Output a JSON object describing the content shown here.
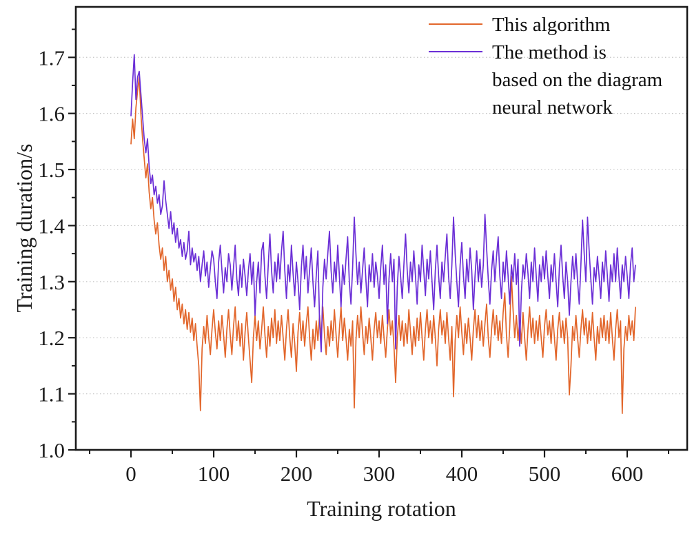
{
  "chart_data": {
    "type": "line",
    "title": "",
    "xlabel": "Training rotation",
    "ylabel": "Training duration/s",
    "xlim": [
      -66.7,
      672.5
    ],
    "ylim": [
      1.0,
      1.79
    ],
    "x_ticks_major": [
      0,
      100,
      200,
      300,
      400,
      500,
      600
    ],
    "x_ticks_minor": [
      -50,
      50,
      150,
      250,
      350,
      450,
      550,
      650
    ],
    "y_ticks_major": [
      1.0,
      1.1,
      1.2,
      1.3,
      1.4,
      1.5,
      1.6,
      1.7
    ],
    "y_tick_labels": [
      "1.0",
      "1.1",
      "1.2",
      "1.3",
      "1.4",
      "1.5",
      "1.6",
      "1.7"
    ],
    "y_ticks_minor": [
      1.05,
      1.15,
      1.25,
      1.35,
      1.45,
      1.55,
      1.65,
      1.75
    ],
    "grid": "horizontal-dotted",
    "grid_color": "#c4c4c4",
    "axis_color": "#1a1a1a",
    "legend": {
      "position": "top-right",
      "entries": [
        {
          "label": "This algorithm",
          "label_lines": [
            "This algorithm"
          ],
          "color": "#e2662b"
        },
        {
          "label": "The method is based on the diagram neural network",
          "label_lines": [
            "The method is",
            "based on the diagram",
            "neural network"
          ],
          "color": "#6b2fd6"
        }
      ]
    },
    "x_start": 0,
    "x_step": 2,
    "series": [
      {
        "name": "This algorithm",
        "color": "#e2662b",
        "values": [
          1.545,
          1.59,
          1.555,
          1.61,
          1.64,
          1.665,
          1.6,
          1.555,
          1.52,
          1.485,
          1.51,
          1.46,
          1.43,
          1.45,
          1.41,
          1.385,
          1.405,
          1.365,
          1.34,
          1.36,
          1.32,
          1.345,
          1.3,
          1.32,
          1.285,
          1.305,
          1.265,
          1.29,
          1.25,
          1.27,
          1.235,
          1.26,
          1.225,
          1.25,
          1.215,
          1.245,
          1.21,
          1.235,
          1.195,
          1.225,
          1.185,
          1.15,
          1.07,
          1.18,
          1.22,
          1.19,
          1.24,
          1.2,
          1.17,
          1.215,
          1.25,
          1.21,
          1.18,
          1.23,
          1.195,
          1.24,
          1.205,
          1.165,
          1.215,
          1.25,
          1.205,
          1.17,
          1.22,
          1.255,
          1.195,
          1.23,
          1.185,
          1.225,
          1.16,
          1.21,
          1.245,
          1.2,
          1.16,
          1.12,
          1.2,
          1.24,
          1.195,
          1.23,
          1.18,
          1.215,
          1.255,
          1.205,
          1.165,
          1.22,
          1.185,
          1.235,
          1.2,
          1.25,
          1.19,
          1.23,
          1.195,
          1.24,
          1.2,
          1.16,
          1.215,
          1.25,
          1.2,
          1.165,
          1.225,
          1.19,
          1.14,
          1.21,
          1.245,
          1.195,
          1.23,
          1.185,
          1.225,
          1.255,
          1.2,
          1.16,
          1.215,
          1.18,
          1.23,
          1.195,
          1.24,
          1.2,
          1.255,
          1.205,
          1.17,
          1.22,
          1.185,
          1.23,
          1.195,
          1.25,
          1.205,
          1.165,
          1.215,
          1.255,
          1.195,
          1.235,
          1.2,
          1.16,
          1.215,
          1.185,
          1.23,
          1.075,
          1.195,
          1.24,
          1.2,
          1.255,
          1.21,
          1.17,
          1.22,
          1.19,
          1.235,
          1.2,
          1.16,
          1.215,
          1.245,
          1.2,
          1.23,
          1.19,
          1.24,
          1.2,
          1.165,
          1.215,
          1.25,
          1.205,
          1.23,
          1.185,
          1.12,
          1.2,
          1.24,
          1.195,
          1.23,
          1.185,
          1.225,
          1.19,
          1.25,
          1.21,
          1.17,
          1.22,
          1.185,
          1.235,
          1.195,
          1.245,
          1.2,
          1.16,
          1.215,
          1.25,
          1.2,
          1.23,
          1.19,
          1.24,
          1.2,
          1.15,
          1.215,
          1.25,
          1.205,
          1.23,
          1.19,
          1.245,
          1.2,
          1.16,
          1.22,
          1.095,
          1.195,
          1.24,
          1.2,
          1.255,
          1.21,
          1.17,
          1.225,
          1.19,
          1.235,
          1.2,
          1.16,
          1.215,
          1.25,
          1.2,
          1.24,
          1.195,
          1.23,
          1.185,
          1.225,
          1.26,
          1.2,
          1.165,
          1.215,
          1.25,
          1.205,
          1.24,
          1.195,
          1.23,
          1.19,
          1.245,
          1.28,
          1.205,
          1.165,
          1.22,
          1.31,
          1.25,
          1.2,
          1.24,
          1.195,
          1.23,
          1.19,
          1.245,
          1.2,
          1.16,
          1.215,
          1.255,
          1.2,
          1.235,
          1.19,
          1.23,
          1.195,
          1.24,
          1.2,
          1.165,
          1.22,
          1.25,
          1.205,
          1.23,
          1.19,
          1.24,
          1.2,
          1.16,
          1.215,
          1.245,
          1.2,
          1.23,
          1.19,
          1.235,
          1.2,
          1.098,
          1.15,
          1.22,
          1.195,
          1.24,
          1.2,
          1.165,
          1.215,
          1.25,
          1.205,
          1.235,
          1.19,
          1.23,
          1.195,
          1.245,
          1.2,
          1.16,
          1.22,
          1.19,
          1.235,
          1.2,
          1.24,
          1.195,
          1.23,
          1.19,
          1.245,
          1.2,
          1.16,
          1.215,
          1.25,
          1.2,
          1.23,
          1.065,
          1.18,
          1.22,
          1.195,
          1.24,
          1.205,
          1.23,
          1.195,
          1.255
        ]
      },
      {
        "name": "The method is based on the diagram neural network",
        "color": "#6b2fd6",
        "values": [
          1.595,
          1.655,
          1.705,
          1.625,
          1.665,
          1.675,
          1.635,
          1.595,
          1.555,
          1.53,
          1.555,
          1.505,
          1.475,
          1.49,
          1.455,
          1.47,
          1.44,
          1.455,
          1.42,
          1.435,
          1.48,
          1.445,
          1.42,
          1.395,
          1.425,
          1.385,
          1.405,
          1.37,
          1.395,
          1.36,
          1.375,
          1.345,
          1.37,
          1.34,
          1.355,
          1.39,
          1.33,
          1.36,
          1.335,
          1.35,
          1.32,
          1.345,
          1.3,
          1.33,
          1.355,
          1.31,
          1.335,
          1.29,
          1.325,
          1.355,
          1.34,
          1.3,
          1.27,
          1.335,
          1.365,
          1.32,
          1.28,
          1.325,
          1.3,
          1.35,
          1.33,
          1.285,
          1.325,
          1.365,
          1.305,
          1.275,
          1.33,
          1.29,
          1.34,
          1.31,
          1.275,
          1.32,
          1.35,
          1.295,
          1.335,
          1.24,
          1.3,
          1.335,
          1.28,
          1.355,
          1.37,
          1.31,
          1.27,
          1.33,
          1.385,
          1.32,
          1.28,
          1.335,
          1.3,
          1.35,
          1.305,
          1.355,
          1.39,
          1.32,
          1.27,
          1.33,
          1.3,
          1.365,
          1.315,
          1.275,
          1.335,
          1.3,
          1.25,
          1.325,
          1.365,
          1.305,
          1.345,
          1.28,
          1.32,
          1.36,
          1.3,
          1.255,
          1.31,
          1.355,
          1.23,
          1.175,
          1.29,
          1.34,
          1.305,
          1.35,
          1.39,
          1.32,
          1.28,
          1.335,
          1.3,
          1.365,
          1.31,
          1.255,
          1.33,
          1.295,
          1.34,
          1.38,
          1.3,
          1.26,
          1.325,
          1.415,
          1.35,
          1.295,
          1.335,
          1.28,
          1.32,
          1.36,
          1.305,
          1.255,
          1.33,
          1.3,
          1.35,
          1.29,
          1.335,
          1.31,
          1.27,
          1.325,
          1.365,
          1.295,
          1.33,
          1.225,
          1.305,
          1.35,
          1.3,
          1.34,
          1.18,
          1.29,
          1.345,
          1.31,
          1.27,
          1.33,
          1.385,
          1.32,
          1.28,
          1.335,
          1.3,
          1.355,
          1.31,
          1.26,
          1.33,
          1.3,
          1.365,
          1.32,
          1.275,
          1.34,
          1.305,
          1.355,
          1.3,
          1.25,
          1.32,
          1.365,
          1.31,
          1.27,
          1.335,
          1.3,
          1.345,
          1.385,
          1.31,
          1.27,
          1.33,
          1.415,
          1.35,
          1.3,
          1.255,
          1.33,
          1.37,
          1.31,
          1.27,
          1.34,
          1.3,
          1.36,
          1.32,
          1.25,
          1.31,
          1.355,
          1.3,
          1.34,
          1.29,
          1.33,
          1.42,
          1.36,
          1.305,
          1.26,
          1.32,
          1.355,
          1.3,
          1.345,
          1.38,
          1.31,
          1.27,
          1.335,
          1.3,
          1.355,
          1.31,
          1.26,
          1.33,
          1.3,
          1.35,
          1.295,
          1.34,
          1.185,
          1.28,
          1.33,
          1.305,
          1.35,
          1.315,
          1.27,
          1.335,
          1.3,
          1.36,
          1.31,
          1.265,
          1.33,
          1.3,
          1.345,
          1.305,
          1.355,
          1.31,
          1.27,
          1.33,
          1.3,
          1.35,
          1.3,
          1.255,
          1.325,
          1.365,
          1.31,
          1.27,
          1.335,
          1.3,
          1.24,
          1.3,
          1.345,
          1.305,
          1.35,
          1.3,
          1.26,
          1.33,
          1.41,
          1.35,
          1.3,
          1.415,
          1.355,
          1.305,
          1.26,
          1.325,
          1.3,
          1.345,
          1.31,
          1.27,
          1.335,
          1.3,
          1.355,
          1.31,
          1.265,
          1.33,
          1.3,
          1.35,
          1.3,
          1.36,
          1.31,
          1.27,
          1.33,
          1.3,
          1.345,
          1.31,
          1.27,
          1.33,
          1.36,
          1.3,
          1.33
        ]
      }
    ]
  }
}
